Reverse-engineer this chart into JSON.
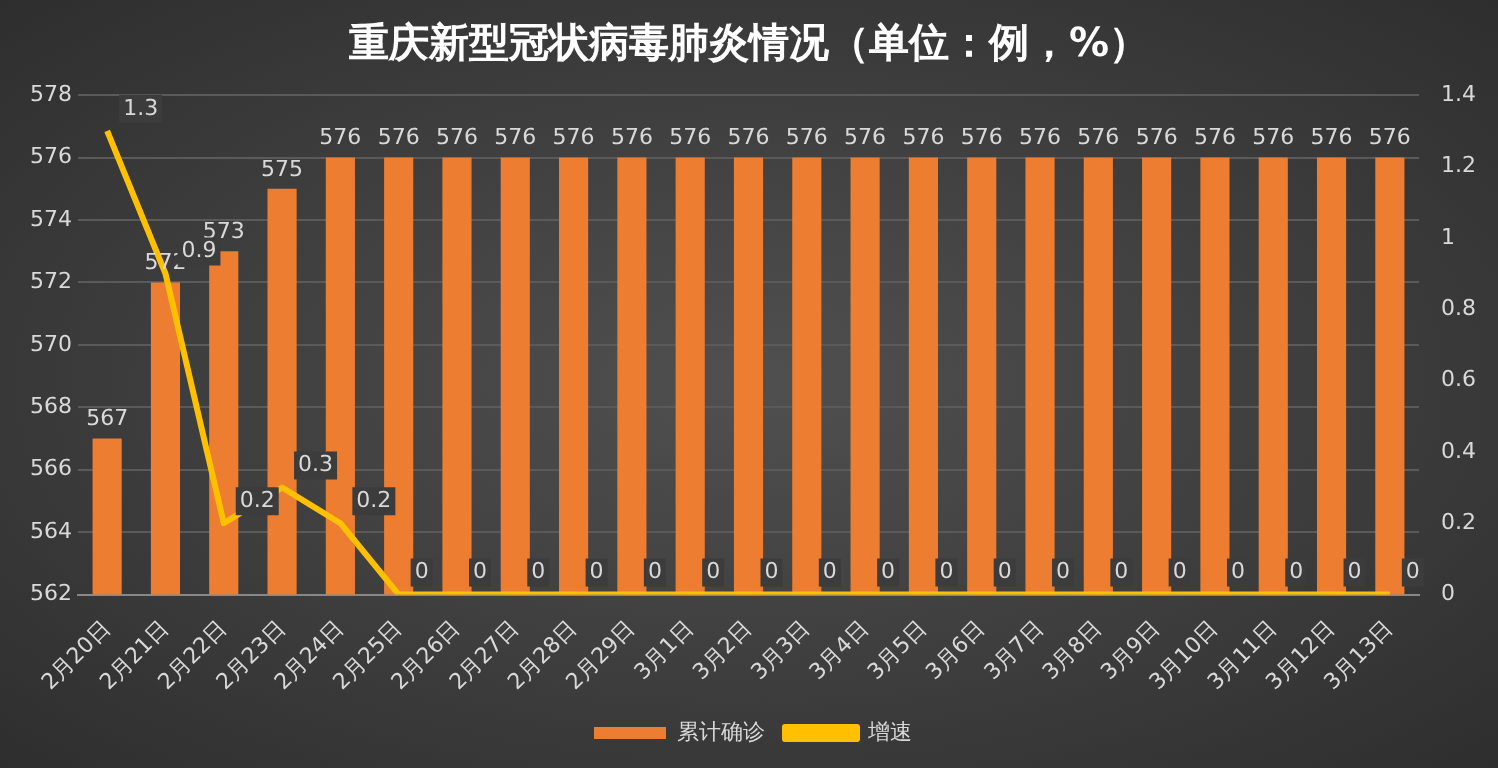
{
  "chart_data": {
    "type": "bar",
    "title": "重庆新型冠状病毒肺炎情况（单位：例，%）",
    "categories": [
      "2月20日",
      "2月21日",
      "2月22日",
      "2月23日",
      "2月24日",
      "2月25日",
      "2月26日",
      "2月27日",
      "2月28日",
      "2月29日",
      "3月1日",
      "3月2日",
      "3月3日",
      "3月4日",
      "3月5日",
      "3月6日",
      "3月7日",
      "3月8日",
      "3月9日",
      "3月10日",
      "3月11日",
      "3月12日",
      "3月13日"
    ],
    "series": [
      {
        "name": "累计确诊",
        "color": "#ed7d31",
        "values": [
          567,
          572,
          573,
          575,
          576,
          576,
          576,
          576,
          576,
          576,
          576,
          576,
          576,
          576,
          576,
          576,
          576,
          576,
          576,
          576,
          576,
          576,
          576
        ]
      },
      {
        "name": "增速",
        "type": "line",
        "axis": "y2",
        "color": "#ffc000",
        "values": [
          1.3,
          0.9,
          0.2,
          0.3,
          0.2,
          0,
          0,
          0,
          0,
          0,
          0,
          0,
          0,
          0,
          0,
          0,
          0,
          0,
          0,
          0,
          0,
          0,
          0
        ]
      }
    ],
    "ylim": [
      562,
      578
    ],
    "yticks": [
      562,
      564,
      566,
      568,
      570,
      572,
      574,
      576,
      578
    ],
    "y2lim": [
      0,
      1.4
    ],
    "y2ticks": [
      0,
      0.2,
      0.4,
      0.6,
      0.8,
      1,
      1.2,
      1.4
    ],
    "grid": "y",
    "legend": "bottom",
    "data_labels": true,
    "marker": "none"
  }
}
